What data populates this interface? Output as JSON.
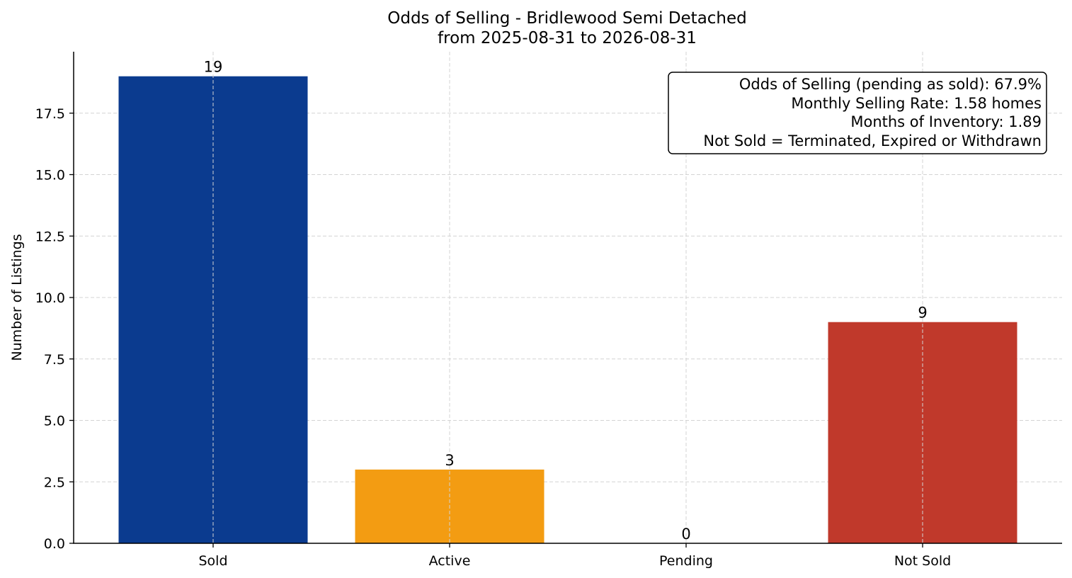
{
  "chart_data": {
    "type": "bar",
    "title": "Odds of Selling - Bridlewood Semi Detached",
    "subtitle": "from 2025-08-31 to 2026-08-31",
    "xlabel": "",
    "ylabel": "Number of Listings",
    "categories": [
      "Sold",
      "Active",
      "Pending",
      "Not Sold"
    ],
    "values": [
      19,
      3,
      0,
      9
    ],
    "colors": [
      "#0b3b8f",
      "#f39c12",
      "#7f7f7f",
      "#c0392b"
    ],
    "ylim": [
      0,
      20
    ],
    "yticks": [
      "0.0",
      "2.5",
      "5.0",
      "7.5",
      "10.0",
      "12.5",
      "15.0",
      "17.5"
    ],
    "grid": true,
    "info_box": {
      "placement": "top-right",
      "lines": [
        "Odds of Selling (pending as sold): 67.9%",
        "Monthly Selling Rate: 1.58 homes",
        "Months of Inventory: 1.89",
        "Not Sold = Terminated, Expired or Withdrawn"
      ]
    }
  }
}
